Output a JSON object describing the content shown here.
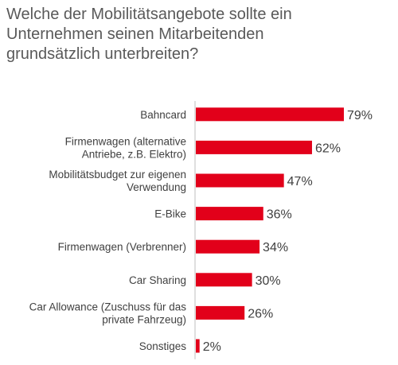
{
  "title": "Welche der Mobilitätsangebote sollte ein\nUnternehmen seinen Mitarbeitenden\ngrundsätzlich unterbreiten?",
  "colors": {
    "bar": "#e2001a",
    "axis": "#bfbfbf"
  },
  "chart_data": {
    "type": "bar",
    "orientation": "horizontal",
    "title": "Welche der Mobilitätsangebote sollte ein Unternehmen seinen Mitarbeitenden grundsätzlich unterbreiten?",
    "categories": [
      [
        "Bahncard"
      ],
      [
        "Firmenwagen (alternative",
        "Antriebe, z.B. Elektro)"
      ],
      [
        "Mobilitätsbudget zur eigenen",
        "Verwendung"
      ],
      [
        "E-Bike"
      ],
      [
        "Firmenwagen (Verbrenner)"
      ],
      [
        "Car Sharing"
      ],
      [
        "Car Allowance (Zuschuss für das",
        "private Fahrzeug)"
      ],
      [
        "Sonstiges"
      ]
    ],
    "values": [
      79,
      62,
      47,
      36,
      34,
      30,
      26,
      2
    ],
    "value_labels": [
      "79%",
      "62%",
      "47%",
      "36%",
      "34%",
      "30%",
      "26%",
      "2%"
    ],
    "unit": "%",
    "xlim": [
      0,
      100
    ],
    "grid": false,
    "legend": "none"
  }
}
